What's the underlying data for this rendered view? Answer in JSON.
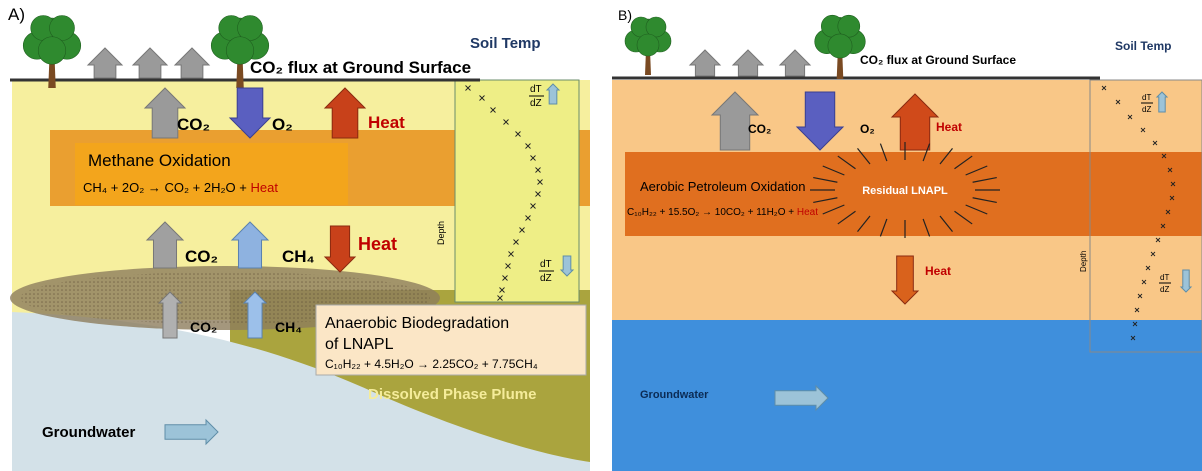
{
  "panel_a": {
    "label": "A)",
    "flux": "CO₂ flux at Ground Surface",
    "soil_temp": "Soil Temp",
    "co2_top": "CO₂",
    "o2": "O₂",
    "heat_top": "Heat",
    "methane_title": "Methane Oxidation",
    "methane_eq": "CH₄ + 2O₂ → CO₂ + 2H₂O +",
    "methane_eq_heat": "Heat",
    "co2_mid": "CO₂",
    "ch4_mid": "CH₄",
    "heat_mid": "Heat",
    "co2_low": "CO₂",
    "ch4_low": "CH₄",
    "anaerobic_title_1": "Anaerobic Biodegradation",
    "anaerobic_title_2": "of LNAPL",
    "anaerobic_eq": "C₁₀H₂₂ + 4.5H₂O → 2.25CO₂ + 7.75CH₄",
    "plume": "Dissolved Phase Plume",
    "groundwater": "Groundwater",
    "depth": "Depth",
    "gradient_top": {
      "num": "dT",
      "den": "dZ"
    },
    "gradient_bottom": {
      "num": "dT",
      "den": "dZ"
    }
  },
  "panel_b": {
    "label": "B)",
    "flux": "CO₂ flux at Ground Surface",
    "soil_temp": "Soil Temp",
    "co2_top": "CO₂",
    "o2": "O₂",
    "heat_top": "Heat",
    "oxidation_title": "Aerobic Petroleum Oxidation",
    "oxidation_eq": "C₁₀H₂₂ + 15.5O₂ → 10CO₂ + 11H₂O +",
    "oxidation_eq_heat": "Heat",
    "lnapl": "Residual LNAPL",
    "heat_low": "Heat",
    "groundwater": "Groundwater",
    "depth": "Depth",
    "gradient_top": {
      "num": "dT",
      "den": "dZ"
    },
    "gradient_bottom": {
      "num": "dT",
      "den": "dZ"
    }
  }
}
